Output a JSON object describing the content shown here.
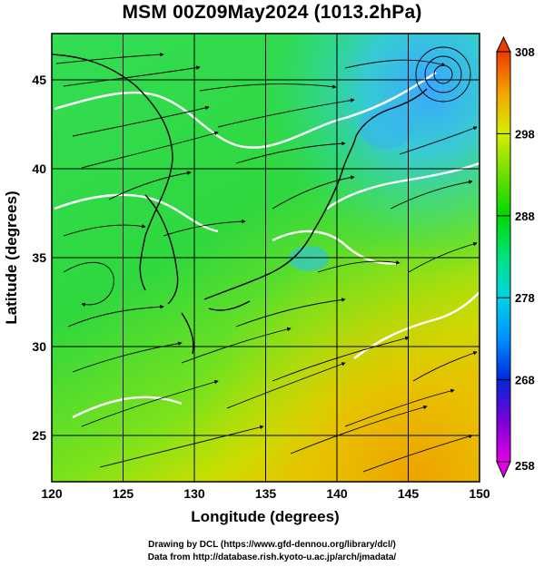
{
  "title": "MSM 00Z09May2024 (1013.2hPa)",
  "map": {
    "xlabel": "Longitude (degrees)",
    "ylabel": "Latitude  (degrees)",
    "lon_range": [
      120,
      150
    ],
    "lat_range": [
      22.4,
      47.6
    ],
    "lon_ticks": [
      "120",
      "125",
      "130",
      "135",
      "140",
      "145",
      "150"
    ],
    "lat_ticks": [
      "25",
      "30",
      "35",
      "40",
      "45"
    ],
    "grid": true,
    "field": "temperature (K) shaded, wind streamlines, white isotherm contours"
  },
  "colorbar": {
    "min": 258,
    "max": 308,
    "labels": [
      "308",
      "298",
      "288",
      "278",
      "268",
      "258"
    ],
    "palette": [
      "#e400e4",
      "#7a00d8",
      "#0028d8",
      "#0090ff",
      "#00d2e6",
      "#00e37e",
      "#00d800",
      "#6be000",
      "#d6ee00",
      "#f2a400",
      "#ee3a00"
    ]
  },
  "credits": {
    "line1": "Drawing by DCL (https://www.gfd-dennou.org/library/dcl/)",
    "line2": "Data from http://database.rish.kyoto-u.ac.jp/arch/jmadata/"
  }
}
